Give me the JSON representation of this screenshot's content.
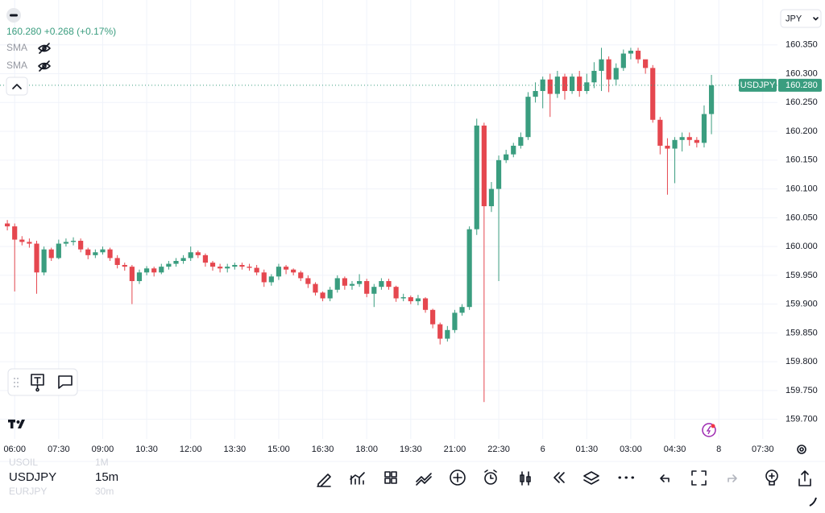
{
  "header": {
    "quote": "160.280 +0.268 (+0.17%)",
    "indicators": [
      "SMA",
      "SMA"
    ],
    "currency": "JPY"
  },
  "chart_data": {
    "type": "candlestick",
    "up_color": "#3a9d7f",
    "down_color": "#e5474f",
    "grid": true,
    "xlim": [
      -1,
      105
    ],
    "xticks": [
      {
        "value": 1,
        "label": "06:00"
      },
      {
        "value": 7,
        "label": "07:30"
      },
      {
        "value": 13,
        "label": "09:00"
      },
      {
        "value": 19,
        "label": "10:30"
      },
      {
        "value": 25,
        "label": "12:00"
      },
      {
        "value": 31,
        "label": "13:30"
      },
      {
        "value": 37,
        "label": "15:00"
      },
      {
        "value": 43,
        "label": "16:30"
      },
      {
        "value": 49,
        "label": "18:00"
      },
      {
        "value": 55,
        "label": "19:30"
      },
      {
        "value": 61,
        "label": "21:00"
      },
      {
        "value": 67,
        "label": "22:30"
      },
      {
        "value": 73,
        "label": "6"
      },
      {
        "value": 79,
        "label": "01:30"
      },
      {
        "value": 85,
        "label": "03:00"
      },
      {
        "value": 91,
        "label": "04:30"
      },
      {
        "value": 97,
        "label": "8"
      },
      {
        "value": 103,
        "label": "07:30"
      }
    ],
    "ylim": [
      159.666,
      160.428
    ],
    "yticks": [
      {
        "value": 160.35,
        "label": "160.350"
      },
      {
        "value": 160.3,
        "label": "160.300"
      },
      {
        "value": 160.25,
        "label": "160.250"
      },
      {
        "value": 160.2,
        "label": "160.200"
      },
      {
        "value": 160.15,
        "label": "160.150"
      },
      {
        "value": 160.1,
        "label": "160.100"
      },
      {
        "value": 160.05,
        "label": "160.050"
      },
      {
        "value": 160,
        "label": "160.000"
      },
      {
        "value": 159.95,
        "label": "159.950"
      },
      {
        "value": 159.9,
        "label": "159.900"
      },
      {
        "value": 159.85,
        "label": "159.850"
      },
      {
        "value": 159.8,
        "label": "159.800"
      },
      {
        "value": 159.75,
        "label": "159.750"
      },
      {
        "value": 159.7,
        "label": "159.700"
      }
    ],
    "last_price": {
      "value": 160.28,
      "label": "160.280"
    },
    "series": [
      {
        "name": "USDJPY",
        "open": [
          160.04,
          160.035,
          160.012,
          160.008,
          160.005,
          159.955,
          159.995,
          159.98,
          160.005,
          160.008,
          160.01,
          159.995,
          159.985,
          159.99,
          159.995,
          159.98,
          159.968,
          159.965,
          159.94,
          159.955,
          159.962,
          159.955,
          159.965,
          159.97,
          159.975,
          159.98,
          159.99,
          159.985,
          159.972,
          159.965,
          159.962,
          159.965,
          159.968,
          159.965,
          159.963,
          159.955,
          159.938,
          159.948,
          159.965,
          159.96,
          159.955,
          159.945,
          159.935,
          159.92,
          159.91,
          159.925,
          159.945,
          159.932,
          159.935,
          159.94,
          159.918,
          159.93,
          159.94,
          159.93,
          159.91,
          159.912,
          159.905,
          159.91,
          159.89,
          159.865,
          159.84,
          159.855,
          159.885,
          159.895,
          160.03,
          160.21,
          160.07,
          160.1,
          160.15,
          160.16,
          160.175,
          160.19,
          160.26,
          160.27,
          160.29,
          160.265,
          160.295,
          160.27,
          160.295,
          160.27,
          160.285,
          160.305,
          160.325,
          160.29,
          160.31,
          160.335,
          160.34,
          160.325,
          160.31,
          160.22,
          160.175,
          160.17,
          160.185,
          160.19,
          160.185,
          160.18,
          160.23
        ],
        "high": [
          160.046,
          160.04,
          160.018,
          160.014,
          160.01,
          160.0,
          159.998,
          160.012,
          160.014,
          160.016,
          160.014,
          159.998,
          159.995,
          160.0,
          159.998,
          159.985,
          159.972,
          159.968,
          159.96,
          159.966,
          159.965,
          159.97,
          159.975,
          159.98,
          159.985,
          160.0,
          159.993,
          159.988,
          159.975,
          159.97,
          159.97,
          159.972,
          159.972,
          159.97,
          159.968,
          159.96,
          159.952,
          159.97,
          159.968,
          159.962,
          159.958,
          159.95,
          159.938,
          159.922,
          159.93,
          159.95,
          159.948,
          159.94,
          159.952,
          159.944,
          159.935,
          159.945,
          159.944,
          159.932,
          159.918,
          159.915,
          159.916,
          159.912,
          159.892,
          159.868,
          159.862,
          159.89,
          159.9,
          160.035,
          160.222,
          160.215,
          160.112,
          160.158,
          160.168,
          160.18,
          160.198,
          160.268,
          160.285,
          160.295,
          160.3,
          160.305,
          160.3,
          160.3,
          160.305,
          160.3,
          160.32,
          160.345,
          160.33,
          160.318,
          160.342,
          160.345,
          160.345,
          160.322,
          160.315,
          160.225,
          160.188,
          160.19,
          160.198,
          160.198,
          160.19,
          160.245,
          160.298
        ],
        "low": [
          160.028,
          159.922,
          160.002,
          159.998,
          159.918,
          159.95,
          159.975,
          159.978,
          160.0,
          160.002,
          159.99,
          159.978,
          159.98,
          159.986,
          159.975,
          159.962,
          159.958,
          159.9,
          159.935,
          159.95,
          159.948,
          159.952,
          159.96,
          159.965,
          159.97,
          159.975,
          159.98,
          159.965,
          159.958,
          159.955,
          159.955,
          159.96,
          159.96,
          159.958,
          159.95,
          159.93,
          159.932,
          159.942,
          159.952,
          159.95,
          159.94,
          159.928,
          159.915,
          159.905,
          159.905,
          159.92,
          159.925,
          159.925,
          159.93,
          159.912,
          159.895,
          159.925,
          159.925,
          159.904,
          159.905,
          159.9,
          159.898,
          159.885,
          159.858,
          159.83,
          159.835,
          159.85,
          159.88,
          159.89,
          160.02,
          159.73,
          160.06,
          159.94,
          160.145,
          160.155,
          160.17,
          160.185,
          160.25,
          160.24,
          160.225,
          160.258,
          160.255,
          160.265,
          160.26,
          160.265,
          160.275,
          160.27,
          160.268,
          160.28,
          160.305,
          160.325,
          160.318,
          160.3,
          160.215,
          160.16,
          160.09,
          160.11,
          160.165,
          160.175,
          160.172,
          160.172,
          160.195
        ],
        "close": [
          160.035,
          160.012,
          160.008,
          160.005,
          159.955,
          159.995,
          159.98,
          160.005,
          160.008,
          160.01,
          159.995,
          159.985,
          159.99,
          159.995,
          159.98,
          159.968,
          159.965,
          159.94,
          159.955,
          159.962,
          159.955,
          159.965,
          159.97,
          159.975,
          159.98,
          159.99,
          159.985,
          159.972,
          159.965,
          159.962,
          159.965,
          159.968,
          159.965,
          159.963,
          159.955,
          159.938,
          159.948,
          159.965,
          159.96,
          159.955,
          159.945,
          159.935,
          159.92,
          159.91,
          159.925,
          159.945,
          159.932,
          159.935,
          159.94,
          159.918,
          159.93,
          159.94,
          159.93,
          159.91,
          159.912,
          159.905,
          159.91,
          159.89,
          159.865,
          159.84,
          159.855,
          159.885,
          159.895,
          160.03,
          160.21,
          160.07,
          160.1,
          160.15,
          160.16,
          160.175,
          160.19,
          160.26,
          160.27,
          160.29,
          160.265,
          160.295,
          160.27,
          160.295,
          160.27,
          160.285,
          160.305,
          160.325,
          160.29,
          160.31,
          160.335,
          160.34,
          160.325,
          160.31,
          160.22,
          160.175,
          160.17,
          160.185,
          160.19,
          160.185,
          160.18,
          160.23,
          160.28
        ]
      }
    ]
  },
  "toolbar": {
    "symbol": "USDJPY",
    "interval": "15m",
    "recent": [
      {
        "symbol": "USOIL",
        "interval": "1M"
      },
      {
        "symbol": "EURJPY",
        "interval": "30m"
      }
    ]
  }
}
